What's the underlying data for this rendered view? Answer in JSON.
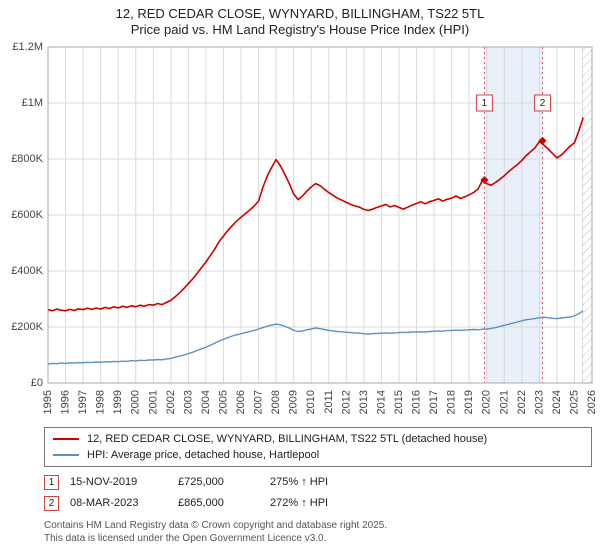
{
  "title": {
    "line1": "12, RED CEDAR CLOSE, WYNYARD, BILLINGHAM, TS22 5TL",
    "line2": "Price paid vs. HM Land Registry's House Price Index (HPI)"
  },
  "legend": {
    "series1": "12, RED CEDAR CLOSE, WYNYARD, BILLINGHAM, TS22 5TL (detached house)",
    "series2": "HPI: Average price, detached house, Hartlepool"
  },
  "annotations": [
    {
      "index": "1",
      "date": "15-NOV-2019",
      "price": "£725,000",
      "hpi": "275% ↑ HPI"
    },
    {
      "index": "2",
      "date": "08-MAR-2023",
      "price": "£865,000",
      "hpi": "272% ↑ HPI"
    }
  ],
  "footer": {
    "line1": "Contains HM Land Registry data © Crown copyright and database right 2025.",
    "line2": "This data is licensed under the Open Government Licence v3.0."
  },
  "colors": {
    "property": "#cc0000",
    "hpi": "#6090c0",
    "band": "#e9f0fa",
    "sale_line": "#e05555",
    "grid": "#d9d9d9",
    "border": "#aaaaaa"
  },
  "chart_data": {
    "type": "line",
    "title": "12, RED CEDAR CLOSE, WYNYARD, BILLINGHAM, TS22 5TL",
    "subtitle": "Price paid vs. HM Land Registry's House Price Index (HPI)",
    "xlabel": "",
    "ylabel": "",
    "grid": true,
    "legend_position": "bottom",
    "x_range": [
      1995,
      2026
    ],
    "y_range_gbp_k": [
      0,
      1200
    ],
    "label_y_gbp_k": 1000,
    "y_ticks": [
      {
        "v": 0,
        "label": "£0"
      },
      {
        "v": 200,
        "label": "£200K"
      },
      {
        "v": 400,
        "label": "£400K"
      },
      {
        "v": 600,
        "label": "£600K"
      },
      {
        "v": 800,
        "label": "£800K"
      },
      {
        "v": 1000,
        "label": "£1M"
      },
      {
        "v": 1200,
        "label": "£1.2M"
      }
    ],
    "x_ticks": [
      1995,
      1996,
      1997,
      1998,
      1999,
      2000,
      2001,
      2002,
      2003,
      2004,
      2005,
      2006,
      2007,
      2008,
      2009,
      2010,
      2011,
      2012,
      2013,
      2014,
      2015,
      2016,
      2017,
      2018,
      2019,
      2020,
      2021,
      2022,
      2023,
      2024,
      2025,
      2026
    ],
    "shaded_span": {
      "from": 2019.87,
      "to": 2023.18,
      "color": "#e9f0fa"
    },
    "hatched_span": {
      "from": 2025.45,
      "to": 2026
    },
    "series": [
      {
        "name": "price-paid-indexed",
        "label": "12, RED CEDAR CLOSE, WYNYARD, BILLINGHAM, TS22 5TL (detached house)",
        "color": "#cc0000",
        "width": 1.6,
        "x_start": 1995,
        "x_step": 0.25,
        "values_gbp_k": [
          262,
          258,
          264,
          260,
          258,
          263,
          259,
          265,
          262,
          267,
          263,
          268,
          264,
          270,
          266,
          272,
          268,
          274,
          270,
          276,
          272,
          278,
          274,
          280,
          278,
          284,
          280,
          288,
          295,
          308,
          322,
          338,
          355,
          372,
          392,
          412,
          432,
          455,
          478,
          505,
          525,
          545,
          562,
          578,
          592,
          605,
          618,
          632,
          650,
          700,
          740,
          770,
          798,
          775,
          745,
          712,
          675,
          655,
          668,
          685,
          700,
          712,
          705,
          692,
          680,
          670,
          660,
          653,
          645,
          638,
          632,
          628,
          620,
          616,
          621,
          627,
          632,
          638,
          629,
          634,
          627,
          621,
          628,
          635,
          641,
          647,
          640,
          648,
          652,
          658,
          650,
          656,
          660,
          668,
          659,
          665,
          672,
          680,
          692,
          722,
          712,
          706,
          716,
          728,
          740,
          755,
          768,
          780,
          795,
          812,
          826,
          840,
          862,
          850,
          836,
          820,
          804,
          814,
          830,
          846,
          858,
          900,
          948
        ]
      },
      {
        "name": "hpi-hartlepool-detached",
        "label": "HPI: Average price, detached house, Hartlepool",
        "color": "#6090c0",
        "width": 1.4,
        "x_start": 1995,
        "x_step": 0.25,
        "values_gbp_k": [
          68,
          70,
          69,
          71,
          70,
          72,
          71,
          73,
          72,
          74,
          73,
          75,
          74,
          76,
          75,
          77,
          76,
          78,
          77,
          80,
          79,
          81,
          80,
          82,
          82,
          84,
          83,
          86,
          88,
          92,
          96,
          100,
          105,
          110,
          116,
          122,
          128,
          135,
          142,
          150,
          156,
          162,
          168,
          172,
          176,
          180,
          184,
          188,
          193,
          198,
          203,
          207,
          210,
          208,
          202,
          196,
          188,
          184,
          186,
          190,
          193,
          196,
          194,
          191,
          188,
          186,
          184,
          183,
          181,
          180,
          179,
          178,
          176,
          175,
          176,
          177,
          178,
          179,
          178,
          179,
          180,
          181,
          180,
          182,
          182,
          183,
          182,
          184,
          185,
          186,
          185,
          187,
          188,
          189,
          188,
          189,
          190,
          191,
          190,
          192,
          193,
          195,
          198,
          202,
          206,
          210,
          214,
          218,
          222,
          226,
          228,
          230,
          233,
          235,
          233,
          231,
          230,
          232,
          234,
          236,
          240,
          248,
          258
        ]
      }
    ],
    "sales": [
      {
        "label": "1",
        "x": 2019.87,
        "y_gbp_k": 725,
        "date": "15-NOV-2019",
        "price_gbp": 725000,
        "vs_hpi": "275% ↑ HPI"
      },
      {
        "label": "2",
        "x": 2023.18,
        "y_gbp_k": 865,
        "date": "08-MAR-2023",
        "price_gbp": 865000,
        "vs_hpi": "272% ↑ HPI"
      }
    ]
  }
}
